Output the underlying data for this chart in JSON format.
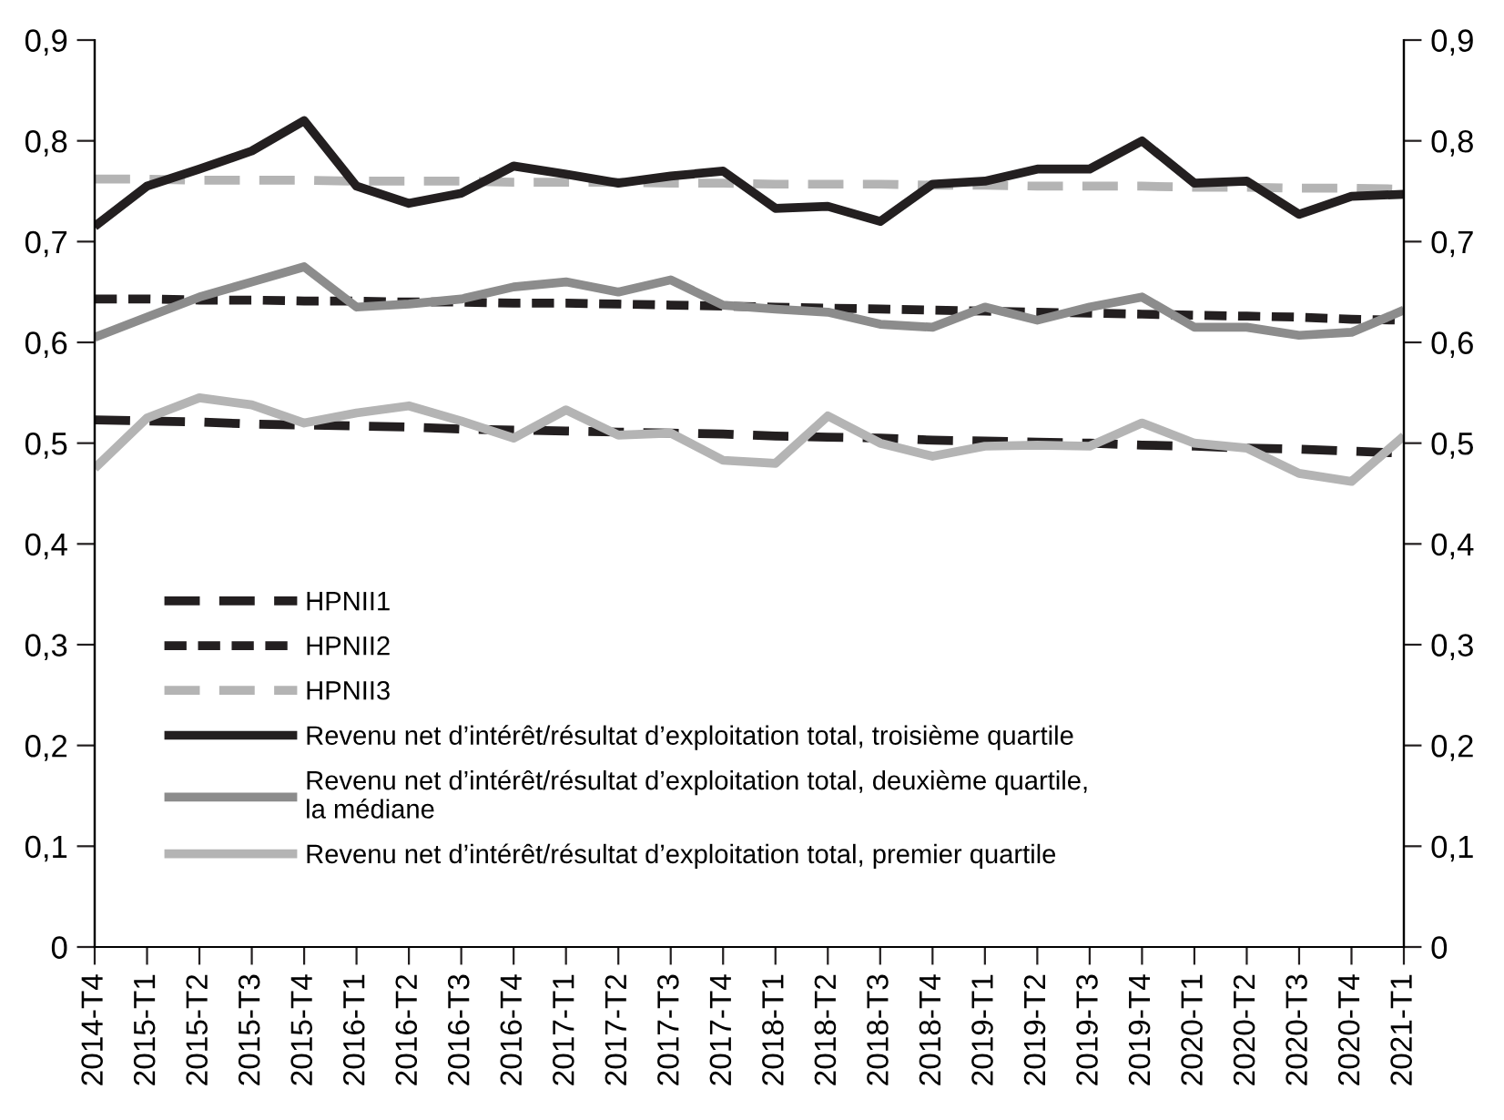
{
  "chart_data": {
    "type": "line",
    "categories": [
      "2014-T4",
      "2015-T1",
      "2015-T2",
      "2015-T3",
      "2015-T4",
      "2016-T1",
      "2016-T2",
      "2016-T3",
      "2016-T4",
      "2017-T1",
      "2017-T2",
      "2017-T3",
      "2017-T4",
      "2018-T1",
      "2018-T2",
      "2018-T3",
      "2018-T4",
      "2019-T1",
      "2019-T2",
      "2019-T3",
      "2019-T4",
      "2020-T1",
      "2020-T2",
      "2020-T3",
      "2020-T4",
      "2021-T1"
    ],
    "series": [
      {
        "name": "HPNII1",
        "color": "#231f20",
        "line_style": "dashed",
        "values": [
          0.523,
          0.522,
          0.521,
          0.519,
          0.518,
          0.517,
          0.516,
          0.514,
          0.513,
          0.512,
          0.511,
          0.51,
          0.509,
          0.507,
          0.506,
          0.505,
          0.503,
          0.502,
          0.501,
          0.5,
          0.498,
          0.497,
          0.495,
          0.494,
          0.492,
          0.49
        ]
      },
      {
        "name": "HPNII2",
        "color": "#231f20",
        "line_style": "dashed",
        "values": [
          0.643,
          0.643,
          0.642,
          0.642,
          0.641,
          0.641,
          0.64,
          0.64,
          0.639,
          0.639,
          0.638,
          0.637,
          0.636,
          0.635,
          0.634,
          0.633,
          0.632,
          0.631,
          0.63,
          0.629,
          0.628,
          0.627,
          0.626,
          0.625,
          0.623,
          0.622
        ]
      },
      {
        "name": "HPNII3",
        "color": "#b4b4b4",
        "line_style": "dashed",
        "values": [
          0.762,
          0.762,
          0.761,
          0.761,
          0.761,
          0.76,
          0.76,
          0.76,
          0.759,
          0.759,
          0.759,
          0.758,
          0.758,
          0.757,
          0.757,
          0.757,
          0.756,
          0.756,
          0.755,
          0.755,
          0.755,
          0.754,
          0.754,
          0.753,
          0.753,
          0.752
        ]
      },
      {
        "name": "Revenu net d’intérêt/résultat d’exploitation total, troisième quartile",
        "color": "#231f20",
        "line_style": "solid",
        "values": [
          0.715,
          0.755,
          0.772,
          0.79,
          0.82,
          0.755,
          0.738,
          0.748,
          0.775,
          0.767,
          0.758,
          0.765,
          0.77,
          0.733,
          0.735,
          0.72,
          0.757,
          0.76,
          0.772,
          0.772,
          0.8,
          0.758,
          0.76,
          0.727,
          0.745,
          0.747
        ]
      },
      {
        "name": "Revenu net d’intérêt/résultat d’exploitation total, deuxième quartile,\nla médiane",
        "color": "#8c8c8c",
        "line_style": "solid",
        "values": [
          0.605,
          0.625,
          0.645,
          0.66,
          0.675,
          0.635,
          0.638,
          0.643,
          0.655,
          0.66,
          0.65,
          0.662,
          0.637,
          0.633,
          0.63,
          0.618,
          0.615,
          0.635,
          0.622,
          0.635,
          0.645,
          0.615,
          0.615,
          0.607,
          0.61,
          0.632
        ]
      },
      {
        "name": "Revenu net d’intérêt/résultat d’exploitation total, premier quartile",
        "color": "#b4b4b4",
        "line_style": "solid",
        "values": [
          0.475,
          0.525,
          0.545,
          0.538,
          0.52,
          0.53,
          0.537,
          0.522,
          0.505,
          0.533,
          0.508,
          0.51,
          0.483,
          0.48,
          0.527,
          0.5,
          0.487,
          0.497,
          0.498,
          0.497,
          0.52,
          0.5,
          0.495,
          0.47,
          0.462,
          0.507
        ]
      }
    ],
    "ylim": [
      0,
      0.9
    ],
    "yticks": [
      0,
      {
        "value": 0.1,
        "label": "0,1"
      },
      {
        "value": 0.2,
        "label": "0,2"
      },
      {
        "value": 0.3,
        "label": "0,3"
      },
      {
        "value": 0.4,
        "label": "0,4"
      },
      {
        "value": 0.5,
        "label": "0,5"
      },
      {
        "value": 0.6,
        "label": "0,6"
      },
      {
        "value": 0.7,
        "label": "0,7"
      },
      {
        "value": 0.8,
        "label": "0,8"
      },
      {
        "value": 0.9,
        "label": "0,9"
      }
    ],
    "y2lim": [
      0,
      0.9
    ],
    "y2ticks": [
      0,
      {
        "value": 0.1,
        "label": "0,1"
      },
      {
        "value": 0.2,
        "label": "0,2"
      },
      {
        "value": 0.3,
        "label": "0,3"
      },
      {
        "value": 0.4,
        "label": "0,4"
      },
      {
        "value": 0.5,
        "label": "0,5"
      },
      {
        "value": 0.6,
        "label": "0,6"
      },
      {
        "value": 0.7,
        "label": "0,7"
      },
      {
        "value": 0.8,
        "label": "0,8"
      },
      {
        "value": 0.9,
        "label": "0,9"
      }
    ],
    "grid": false,
    "legend": "bottom left"
  }
}
